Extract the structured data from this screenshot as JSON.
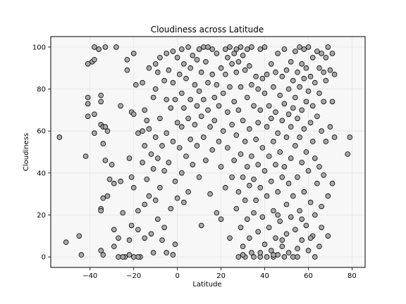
{
  "chart_data": {
    "type": "scatter",
    "title": "Cloudiness across Latitude",
    "xlabel": "Latitude",
    "ylabel": "Cloudiness",
    "xlim": [
      -58,
      86
    ],
    "ylim": [
      -5,
      105
    ],
    "xticks": [
      -40,
      -20,
      0,
      20,
      40,
      60,
      80
    ],
    "yticks": [
      0,
      20,
      40,
      60,
      80,
      100
    ],
    "grid": true,
    "marker_color": "#a9a9a9",
    "marker_edge_color": "#000000",
    "points": [
      [
        -54,
        57
      ],
      [
        -51,
        7
      ],
      [
        -44,
        1
      ],
      [
        -45,
        10
      ],
      [
        -42,
        48
      ],
      [
        -41,
        67
      ],
      [
        -41,
        73
      ],
      [
        -41,
        76
      ],
      [
        -41,
        92
      ],
      [
        -39,
        93
      ],
      [
        -38,
        94
      ],
      [
        -38,
        100
      ],
      [
        -38,
        59
      ],
      [
        -38,
        68
      ],
      [
        -36,
        99
      ],
      [
        -35,
        77
      ],
      [
        -35,
        74
      ],
      [
        -35,
        63
      ],
      [
        -34,
        62
      ],
      [
        -34,
        54
      ],
      [
        -34,
        28
      ],
      [
        -35,
        23
      ],
      [
        -35,
        22
      ],
      [
        -35,
        3
      ],
      [
        -34,
        1
      ],
      [
        -33,
        100
      ],
      [
        -33,
        62
      ],
      [
        -33,
        46
      ],
      [
        -32,
        29
      ],
      [
        -32,
        60
      ],
      [
        -31,
        37
      ],
      [
        -30,
        44
      ],
      [
        -29,
        35
      ],
      [
        -29,
        13
      ],
      [
        -29,
        5
      ],
      [
        -28,
        100
      ],
      [
        -27,
        0
      ],
      [
        -27,
        9
      ],
      [
        -26,
        72
      ],
      [
        -26,
        36
      ],
      [
        -25,
        21
      ],
      [
        -24,
        0
      ],
      [
        -23,
        89
      ],
      [
        -23,
        94
      ],
      [
        -22,
        47
      ],
      [
        -22,
        8
      ],
      [
        -21,
        69
      ],
      [
        -21,
        38
      ],
      [
        -21,
        15
      ],
      [
        -20,
        97
      ],
      [
        -20,
        68
      ],
      [
        -20,
        33
      ],
      [
        -19,
        82
      ],
      [
        -18,
        59
      ],
      [
        -18,
        22
      ],
      [
        -18,
        13
      ],
      [
        -17,
        0
      ],
      [
        -16,
        83
      ],
      [
        -16,
        60
      ],
      [
        -16,
        45
      ],
      [
        -15,
        70
      ],
      [
        -15,
        53
      ],
      [
        -15,
        25
      ],
      [
        -15,
        9
      ],
      [
        -14,
        65
      ],
      [
        -14,
        37
      ],
      [
        -13,
        90
      ],
      [
        -13,
        61
      ],
      [
        -13,
        29
      ],
      [
        -12,
        49
      ],
      [
        -12,
        11
      ],
      [
        -11,
        76
      ],
      [
        -11,
        42
      ],
      [
        -11,
        2
      ],
      [
        -10,
        92
      ],
      [
        -10,
        80
      ],
      [
        -10,
        57
      ],
      [
        -10,
        27
      ],
      [
        -9,
        88
      ],
      [
        -9,
        47
      ],
      [
        -9,
        18
      ],
      [
        -8,
        95
      ],
      [
        -8,
        66
      ],
      [
        -8,
        33
      ],
      [
        -7,
        53
      ],
      [
        -7,
        8
      ],
      [
        -6,
        84
      ],
      [
        -6,
        41
      ],
      [
        -6,
        14
      ],
      [
        -5,
        97
      ],
      [
        -5,
        75
      ],
      [
        -5,
        59
      ],
      [
        -5,
        2
      ],
      [
        -4,
        89
      ],
      [
        -4,
        45
      ],
      [
        -3,
        71
      ],
      [
        -3,
        23
      ],
      [
        -2,
        98
      ],
      [
        -2,
        83
      ],
      [
        -2,
        55
      ],
      [
        -1,
        75
      ],
      [
        -1,
        36
      ],
      [
        -1,
        6
      ],
      [
        0,
        95
      ],
      [
        0,
        64
      ],
      [
        0,
        28
      ],
      [
        1,
        87
      ],
      [
        1,
        52
      ],
      [
        2,
        99
      ],
      [
        2,
        78
      ],
      [
        2,
        40
      ],
      [
        2,
        62
      ],
      [
        3,
        92
      ],
      [
        3,
        71
      ],
      [
        3,
        26
      ],
      [
        4,
        85
      ],
      [
        4,
        48
      ],
      [
        5,
        100
      ],
      [
        5,
        66
      ],
      [
        5,
        31
      ],
      [
        6,
        90
      ],
      [
        6,
        56
      ],
      [
        6,
        75
      ],
      [
        7,
        96
      ],
      [
        7,
        44
      ],
      [
        8,
        82
      ],
      [
        8,
        63
      ],
      [
        9,
        94
      ],
      [
        9,
        72
      ],
      [
        9,
        53
      ],
      [
        10,
        99
      ],
      [
        10,
        79
      ],
      [
        10,
        38
      ],
      [
        11,
        88
      ],
      [
        11,
        67
      ],
      [
        11,
        15
      ],
      [
        12,
        100
      ],
      [
        12,
        57
      ],
      [
        12,
        75
      ],
      [
        13,
        93
      ],
      [
        13,
        46
      ],
      [
        14,
        100
      ],
      [
        14,
        83
      ],
      [
        14,
        70
      ],
      [
        15,
        62
      ],
      [
        15,
        30
      ],
      [
        16,
        99
      ],
      [
        16,
        87
      ],
      [
        16,
        51
      ],
      [
        17,
        76
      ],
      [
        17,
        65
      ],
      [
        18,
        97
      ],
      [
        18,
        82
      ],
      [
        18,
        21
      ],
      [
        19,
        72
      ],
      [
        19,
        55
      ],
      [
        20,
        90
      ],
      [
        20,
        43
      ],
      [
        20,
        18
      ],
      [
        21,
        78
      ],
      [
        21,
        60
      ],
      [
        22,
        99
      ],
      [
        22,
        87
      ],
      [
        22,
        33
      ],
      [
        23,
        95
      ],
      [
        23,
        69
      ],
      [
        23,
        52
      ],
      [
        24,
        100
      ],
      [
        24,
        81
      ],
      [
        24,
        9
      ],
      [
        25,
        92
      ],
      [
        25,
        63
      ],
      [
        25,
        38
      ],
      [
        26,
        97
      ],
      [
        26,
        74
      ],
      [
        26,
        46
      ],
      [
        27,
        99
      ],
      [
        27,
        88
      ],
      [
        27,
        58
      ],
      [
        27,
        23
      ],
      [
        28,
        93
      ],
      [
        28,
        70
      ],
      [
        28,
        31
      ],
      [
        28,
        0
      ],
      [
        29,
        100
      ],
      [
        29,
        81
      ],
      [
        29,
        49
      ],
      [
        29,
        14
      ],
      [
        30,
        96
      ],
      [
        30,
        65
      ],
      [
        30,
        38
      ],
      [
        30,
        5
      ],
      [
        31,
        89
      ],
      [
        31,
        55
      ],
      [
        31,
        27
      ],
      [
        31,
        0
      ],
      [
        32,
        99
      ],
      [
        32,
        76
      ],
      [
        32,
        43
      ],
      [
        32,
        18
      ],
      [
        33,
        91
      ],
      [
        33,
        61
      ],
      [
        33,
        34
      ],
      [
        33,
        9
      ],
      [
        34,
        100
      ],
      [
        34,
        82
      ],
      [
        34,
        48
      ],
      [
        34,
        2
      ],
      [
        35,
        72
      ],
      [
        35,
        37
      ],
      [
        35,
        21
      ],
      [
        35,
        0
      ],
      [
        36,
        86
      ],
      [
        36,
        56
      ],
      [
        36,
        27
      ],
      [
        37,
        80
      ],
      [
        37,
        64
      ],
      [
        37,
        44
      ],
      [
        37,
        12
      ],
      [
        38,
        99
      ],
      [
        38,
        70
      ],
      [
        38,
        33
      ],
      [
        38,
        0
      ],
      [
        39,
        85
      ],
      [
        39,
        52
      ],
      [
        39,
        19
      ],
      [
        40,
        100
      ],
      [
        40,
        78
      ],
      [
        40,
        41
      ],
      [
        40,
        6
      ],
      [
        41,
        87
      ],
      [
        41,
        62
      ],
      [
        41,
        29
      ],
      [
        41,
        0
      ],
      [
        42,
        72
      ],
      [
        42,
        48
      ],
      [
        42,
        14
      ],
      [
        43,
        92
      ],
      [
        43,
        66
      ],
      [
        43,
        36
      ],
      [
        43,
        3
      ],
      [
        44,
        81
      ],
      [
        44,
        55
      ],
      [
        44,
        22
      ],
      [
        44,
        0
      ],
      [
        45,
        88
      ],
      [
        45,
        69
      ],
      [
        45,
        44
      ],
      [
        45,
        9
      ],
      [
        46,
        97
      ],
      [
        46,
        59
      ],
      [
        46,
        31
      ],
      [
        46,
        1
      ],
      [
        47,
        77
      ],
      [
        47,
        50
      ],
      [
        47,
        17
      ],
      [
        48,
        86
      ],
      [
        48,
        65
      ],
      [
        48,
        38
      ],
      [
        48,
        5
      ],
      [
        49,
        99
      ],
      [
        49,
        73
      ],
      [
        49,
        43
      ],
      [
        49,
        0
      ],
      [
        50,
        89
      ],
      [
        50,
        57
      ],
      [
        50,
        25
      ],
      [
        50,
        11
      ],
      [
        51,
        80
      ],
      [
        51,
        68
      ],
      [
        51,
        35
      ],
      [
        51,
        2
      ],
      [
        52,
        93
      ],
      [
        52,
        62
      ],
      [
        52,
        47
      ],
      [
        52,
        19
      ],
      [
        53,
        84
      ],
      [
        53,
        71
      ],
      [
        53,
        29
      ],
      [
        53,
        0
      ],
      [
        54,
        98
      ],
      [
        54,
        76
      ],
      [
        54,
        53
      ],
      [
        54,
        13
      ],
      [
        55,
        88
      ],
      [
        55,
        66
      ],
      [
        55,
        38
      ],
      [
        55,
        4
      ],
      [
        56,
        100
      ],
      [
        56,
        81
      ],
      [
        56,
        57
      ],
      [
        56,
        22
      ],
      [
        57,
        92
      ],
      [
        57,
        70
      ],
      [
        57,
        45
      ],
      [
        57,
        8
      ],
      [
        58,
        99
      ],
      [
        58,
        85
      ],
      [
        58,
        61
      ],
      [
        58,
        31
      ],
      [
        59,
        90
      ],
      [
        59,
        74
      ],
      [
        59,
        50
      ],
      [
        59,
        15
      ],
      [
        60,
        100
      ],
      [
        60,
        79
      ],
      [
        60,
        41
      ],
      [
        60,
        3
      ],
      [
        61,
        86
      ],
      [
        61,
        64
      ],
      [
        61,
        26
      ],
      [
        62,
        95
      ],
      [
        62,
        72
      ],
      [
        62,
        55
      ],
      [
        62,
        10
      ],
      [
        63,
        83
      ],
      [
        63,
        47
      ],
      [
        63,
        20
      ],
      [
        64,
        98
      ],
      [
        64,
        67
      ],
      [
        64,
        35
      ],
      [
        65,
        90
      ],
      [
        65,
        78
      ],
      [
        65,
        43
      ],
      [
        65,
        5
      ],
      [
        66,
        97
      ],
      [
        66,
        60
      ],
      [
        66,
        24
      ],
      [
        67,
        88
      ],
      [
        67,
        74
      ],
      [
        67,
        39
      ],
      [
        68,
        95
      ],
      [
        68,
        84
      ],
      [
        68,
        55
      ],
      [
        69,
        100
      ],
      [
        69,
        29
      ],
      [
        69,
        10
      ],
      [
        70,
        89
      ],
      [
        70,
        62
      ],
      [
        71,
        97
      ],
      [
        71,
        74
      ],
      [
        71,
        35
      ],
      [
        72,
        87
      ],
      [
        72,
        57
      ],
      [
        78,
        49
      ],
      [
        79,
        57
      ],
      [
        63,
        0
      ],
      [
        55,
        0
      ],
      [
        44,
        1
      ],
      [
        38,
        2
      ],
      [
        30,
        1
      ],
      [
        -2,
        1
      ],
      [
        -18,
        0
      ],
      [
        -20,
        0
      ],
      [
        -25,
        0
      ],
      [
        -22,
        1
      ],
      [
        48,
        8
      ],
      [
        46,
        20
      ],
      [
        57,
        18
      ],
      [
        61,
        9
      ],
      [
        66,
        14
      ]
    ]
  }
}
